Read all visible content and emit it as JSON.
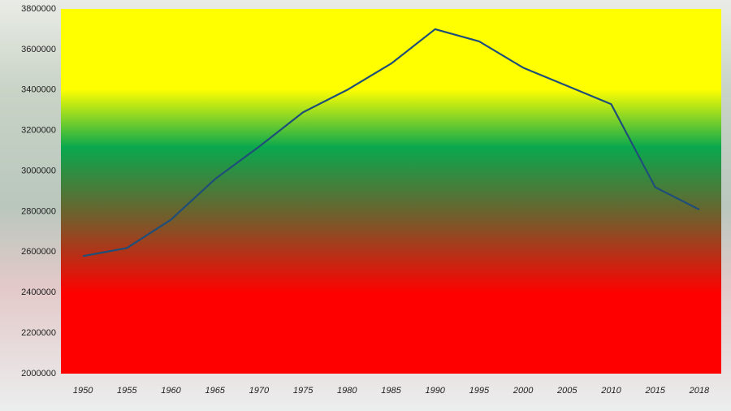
{
  "chart_data": {
    "type": "line",
    "categories": [
      "1950",
      "1955",
      "1960",
      "1965",
      "1970",
      "1975",
      "1980",
      "1985",
      "1990",
      "1995",
      "2000",
      "2005",
      "2010",
      "2015",
      "2018"
    ],
    "values": [
      2580000,
      2620000,
      2760000,
      2960000,
      3120000,
      3290000,
      3400000,
      3530000,
      3700000,
      3640000,
      3510000,
      3420000,
      3330000,
      2920000,
      2810000
    ],
    "color": "#1f4e79",
    "ylim": [
      2000000,
      3800000
    ],
    "yticks": [
      2000000,
      2200000,
      2400000,
      2600000,
      2800000,
      3000000,
      3200000,
      3400000,
      3600000,
      3800000
    ],
    "grid": false
  }
}
